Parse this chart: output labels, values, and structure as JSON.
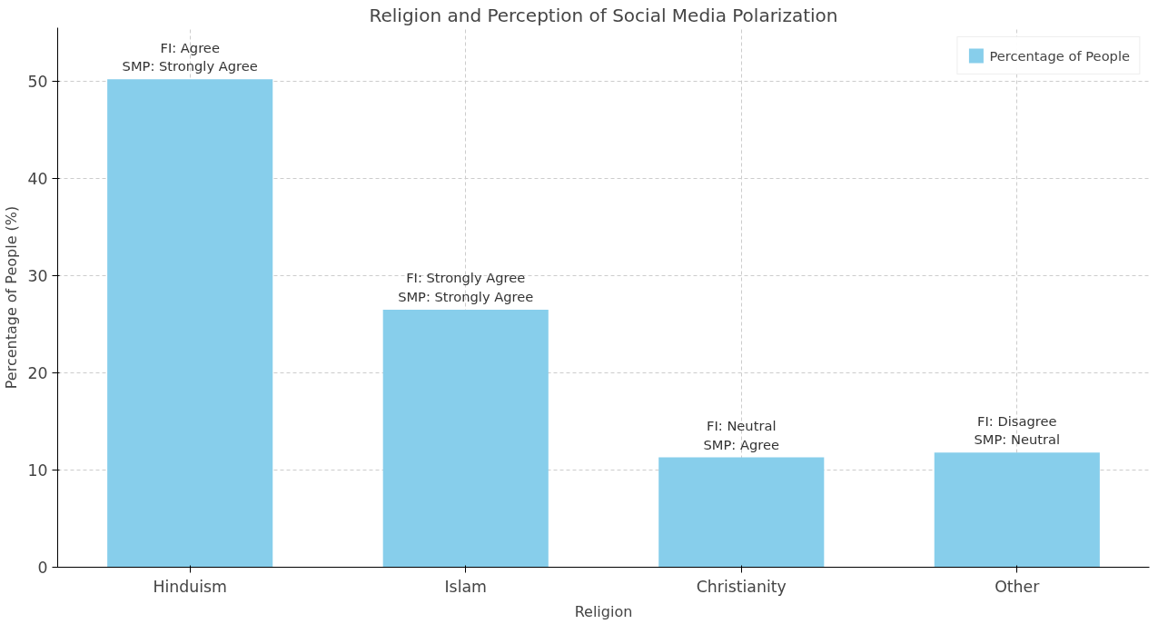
{
  "chart_data": {
    "type": "bar",
    "title": "Religion and Perception of Social Media Polarization",
    "xlabel": "Religion",
    "ylabel": "Percentage of People (%)",
    "categories": [
      "Hinduism",
      "Islam",
      "Christianity",
      "Other"
    ],
    "series": [
      {
        "name": "Percentage of People",
        "color": "#87ceeb",
        "values": [
          50.2,
          26.5,
          11.3,
          11.8
        ]
      }
    ],
    "ylim": [
      0,
      55.5
    ],
    "yticks": [
      0,
      10,
      20,
      30,
      40,
      50
    ],
    "grid": true,
    "legend": "top right",
    "annotations": [
      {
        "text": "FI: Agree\nSMP: Strongly Agree",
        "x": "Hinduism",
        "y": 50.2
      },
      {
        "text": "FI: Strongly Agree\nSMP: Strongly Agree",
        "x": "Islam",
        "y": 26.5
      },
      {
        "text": "FI: Neutral\nSMP: Agree",
        "x": "Christianity",
        "y": 11.3
      },
      {
        "text": "FI: Disagree\nSMP: Neutral",
        "x": "Other",
        "y": 11.8
      }
    ]
  }
}
